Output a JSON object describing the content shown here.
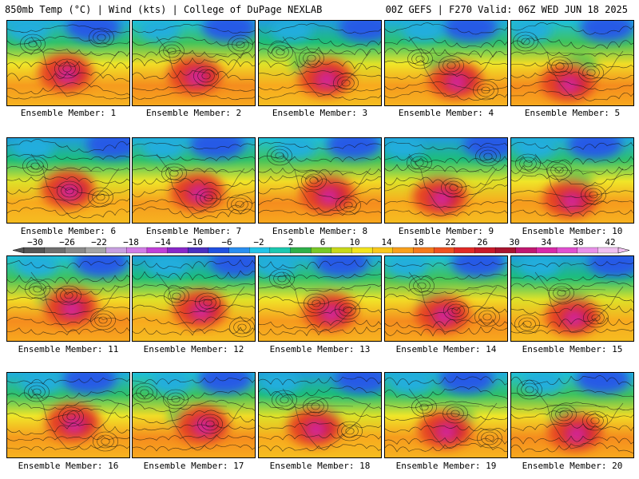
{
  "header": {
    "left": "850mb Temp (°C) | Wind (kts) | College of DuPage NEXLAB",
    "right": "00Z GEFS | F270 Valid: 06Z WED JUN 18 2025"
  },
  "members": [
    "Ensemble Member: 1",
    "Ensemble Member: 2",
    "Ensemble Member: 3",
    "Ensemble Member: 4",
    "Ensemble Member: 5",
    "Ensemble Member: 6",
    "Ensemble Member: 7",
    "Ensemble Member: 8",
    "Ensemble Member: 9",
    "Ensemble Member: 10",
    "Ensemble Member: 11",
    "Ensemble Member: 12",
    "Ensemble Member: 13",
    "Ensemble Member: 14",
    "Ensemble Member: 15",
    "Ensemble Member: 16",
    "Ensemble Member: 17",
    "Ensemble Member: 18",
    "Ensemble Member: 19",
    "Ensemble Member: 20"
  ],
  "colorbar": {
    "labels": [
      "−30",
      "−26",
      "−22",
      "−18",
      "−14",
      "−10",
      "−6",
      "−2",
      "2",
      "6",
      "10",
      "14",
      "18",
      "22",
      "26",
      "30",
      "34",
      "38",
      "42"
    ],
    "colors": [
      "#555555",
      "#6e6e6e",
      "#8a8a8a",
      "#a6a6a6",
      "#c8a0e0",
      "#d27ce6",
      "#c040d8",
      "#8828c8",
      "#4a30c0",
      "#2050e0",
      "#2a8ef0",
      "#22c4e8",
      "#1cc8b0",
      "#2eb04a",
      "#78c828",
      "#c8d81a",
      "#f2e41e",
      "#f8c81c",
      "#f8a01c",
      "#f47a1c",
      "#ee5222",
      "#e02a26",
      "#c81a2a",
      "#a81430",
      "#c01870",
      "#d82aa8",
      "#e050d0",
      "#e890e8",
      "#f0c0f0"
    ]
  }
}
